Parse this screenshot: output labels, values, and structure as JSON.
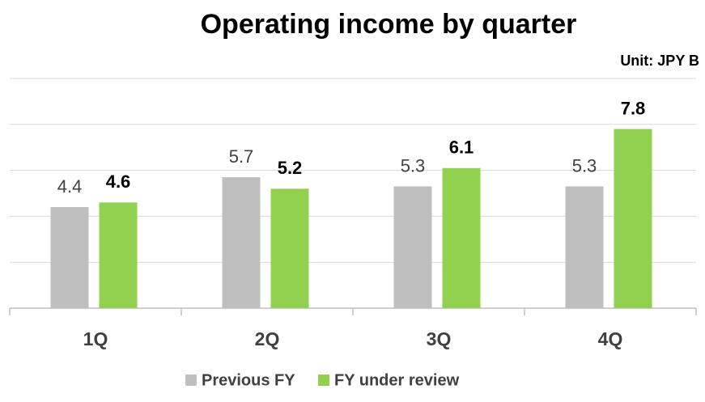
{
  "chart_data": {
    "type": "bar",
    "title": "Operating income by quarter",
    "subtitle": "Unit: JPY B",
    "categories": [
      "1Q",
      "2Q",
      "3Q",
      "4Q"
    ],
    "series": [
      {
        "name": "Previous FY",
        "color": "#bfbfbf",
        "values": [
          4.4,
          5.7,
          5.3,
          5.3
        ]
      },
      {
        "name": "FY under review",
        "color": "#92d050",
        "values": [
          4.6,
          5.2,
          6.1,
          7.8
        ]
      }
    ],
    "ylim": [
      0,
      10
    ],
    "yticks": [
      0,
      2,
      4,
      6,
      8,
      10
    ],
    "grid": true,
    "legend": "bottom"
  }
}
